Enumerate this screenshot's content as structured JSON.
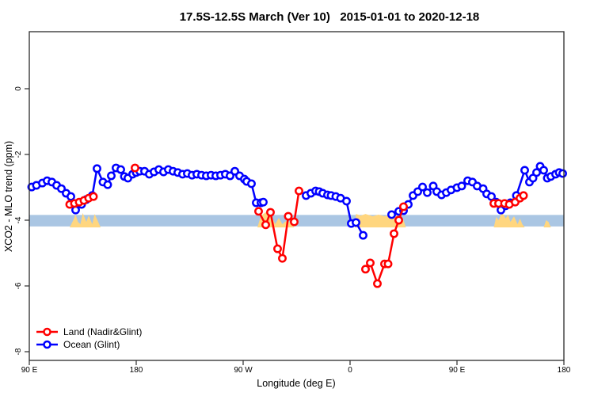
{
  "chart_data": {
    "type": "line",
    "title": "17.5S-12.5S March (Ver 10)   2015-01-01 to 2020-12-18",
    "xlabel": "Longitude (deg E)",
    "ylabel": "XCO2 - MLO trend (ppm)",
    "x_axis": {
      "min": 90,
      "max": 540,
      "note_unit": "longitude unrolled eastward from 90E across the dateline",
      "ticks": [
        {
          "t": 90,
          "label": "90 E"
        },
        {
          "t": 180,
          "label": "180"
        },
        {
          "t": 270,
          "label": "90 W"
        },
        {
          "t": 360,
          "label": "0"
        },
        {
          "t": 450,
          "label": "90 E"
        },
        {
          "t": 540,
          "label": "180"
        }
      ]
    },
    "y_axis": {
      "min": -8.3,
      "max": 1.7,
      "ticks": [
        {
          "v": 0,
          "label": "0"
        },
        {
          "v": -2,
          "label": "-2"
        },
        {
          "v": -4,
          "label": "-4"
        },
        {
          "v": -6,
          "label": "-6"
        },
        {
          "v": -8,
          "label": "-8"
        }
      ]
    },
    "reference_band": {
      "ppm_top": -3.84,
      "ppm_bottom": -4.19,
      "color": "#aac6e3"
    },
    "highlight_patches": {
      "color": "#ffd67f",
      "polygons": [
        [
          [
            124,
            -4.22
          ],
          [
            127,
            -4.0
          ],
          [
            129,
            -3.83
          ],
          [
            131,
            -4.05
          ],
          [
            133,
            -4.12
          ],
          [
            135,
            -3.78
          ],
          [
            138,
            -4.05
          ],
          [
            140,
            -3.86
          ],
          [
            143,
            -4.12
          ],
          [
            145,
            -3.81
          ],
          [
            148,
            -4.05
          ],
          [
            150,
            -4.22
          ]
        ],
        [
          [
            282,
            -4.22
          ],
          [
            285,
            -3.86
          ],
          [
            289,
            -3.76
          ],
          [
            293,
            -3.81
          ],
          [
            297,
            -4.12
          ],
          [
            300,
            -3.93
          ],
          [
            303,
            -4.12
          ],
          [
            307,
            -4.0
          ],
          [
            311,
            -4.12
          ],
          [
            313,
            -4.22
          ]
        ],
        [
          [
            364,
            -4.22
          ],
          [
            365,
            -3.81
          ],
          [
            369,
            -3.86
          ],
          [
            373,
            -3.81
          ],
          [
            379,
            -3.88
          ],
          [
            384,
            -3.83
          ],
          [
            389,
            -3.88
          ],
          [
            395,
            -3.81
          ],
          [
            399,
            -3.86
          ],
          [
            403,
            -3.9
          ],
          [
            405,
            -4.0
          ],
          [
            407,
            -4.22
          ]
        ],
        [
          [
            481,
            -4.22
          ],
          [
            483,
            -3.9
          ],
          [
            485,
            -4.0
          ],
          [
            488,
            -3.76
          ],
          [
            491,
            -3.95
          ],
          [
            493,
            -3.83
          ],
          [
            495,
            -4.05
          ],
          [
            498,
            -3.88
          ],
          [
            501,
            -4.12
          ],
          [
            503,
            -3.95
          ],
          [
            505,
            -4.12
          ],
          [
            507,
            -4.22
          ]
        ],
        [
          [
            523,
            -4.22
          ],
          [
            525,
            -4.0
          ],
          [
            527,
            -4.05
          ],
          [
            529,
            -4.22
          ]
        ]
      ]
    },
    "series": [
      {
        "name": "Land (Nadir&Glint)",
        "color": "#ff0000",
        "segments": [
          [
            [
              124,
              -3.52
            ],
            [
              128,
              -3.49
            ],
            [
              132,
              -3.45
            ],
            [
              136,
              -3.4
            ],
            [
              140,
              -3.33
            ],
            [
              144,
              -3.28
            ]
          ],
          [
            [
              179,
              -2.41
            ]
          ],
          [
            [
              283,
              -3.73
            ],
            [
              289,
              -4.14
            ],
            [
              293,
              -3.76
            ],
            [
              299,
              -4.87
            ],
            [
              303,
              -5.16
            ],
            [
              308,
              -3.88
            ],
            [
              313,
              -4.05
            ],
            [
              317,
              -3.11
            ]
          ],
          [
            [
              373,
              -5.49
            ],
            [
              377,
              -5.3
            ],
            [
              383,
              -5.93
            ],
            [
              389,
              -5.33
            ],
            [
              392,
              -5.33
            ],
            [
              397,
              -4.41
            ],
            [
              401,
              -4.0
            ],
            [
              405,
              -3.59
            ]
          ],
          [
            [
              481,
              -3.49
            ],
            [
              485,
              -3.49
            ],
            [
              490,
              -3.49
            ],
            [
              494,
              -3.52
            ],
            [
              499,
              -3.45
            ],
            [
              503,
              -3.33
            ],
            [
              506,
              -3.25
            ]
          ]
        ]
      },
      {
        "name": "Ocean (Glint)",
        "color": "#0000ff",
        "segments": [
          [
            [
              92,
              -2.99
            ],
            [
              96,
              -2.94
            ],
            [
              101,
              -2.87
            ],
            [
              105,
              -2.8
            ],
            [
              109,
              -2.84
            ],
            [
              113,
              -2.94
            ],
            [
              117,
              -3.04
            ],
            [
              121,
              -3.18
            ],
            [
              125,
              -3.28
            ],
            [
              129,
              -3.69
            ],
            [
              134,
              -3.52
            ],
            [
              138,
              -3.37
            ],
            [
              143,
              -3.25
            ],
            [
              147,
              -2.43
            ],
            [
              152,
              -2.84
            ],
            [
              156,
              -2.92
            ],
            [
              159,
              -2.65
            ],
            [
              163,
              -2.41
            ],
            [
              167,
              -2.46
            ],
            [
              170,
              -2.67
            ],
            [
              173,
              -2.72
            ],
            [
              177,
              -2.6
            ],
            [
              180,
              -2.55
            ],
            [
              183,
              -2.51
            ],
            [
              187,
              -2.51
            ],
            [
              191,
              -2.6
            ],
            [
              195,
              -2.53
            ],
            [
              199,
              -2.46
            ],
            [
              203,
              -2.53
            ],
            [
              207,
              -2.46
            ],
            [
              211,
              -2.51
            ],
            [
              215,
              -2.55
            ],
            [
              219,
              -2.6
            ],
            [
              223,
              -2.58
            ],
            [
              227,
              -2.63
            ],
            [
              231,
              -2.6
            ],
            [
              235,
              -2.63
            ],
            [
              239,
              -2.65
            ],
            [
              243,
              -2.63
            ],
            [
              247,
              -2.65
            ],
            [
              251,
              -2.63
            ],
            [
              255,
              -2.6
            ],
            [
              259,
              -2.65
            ],
            [
              263,
              -2.51
            ],
            [
              267,
              -2.65
            ],
            [
              271,
              -2.75
            ],
            [
              273,
              -2.82
            ],
            [
              277,
              -2.89
            ],
            [
              281,
              -3.47
            ],
            [
              285,
              -3.47
            ],
            [
              287,
              -3.45
            ]
          ],
          [
            [
              323,
              -3.25
            ],
            [
              327,
              -3.18
            ],
            [
              331,
              -3.11
            ],
            [
              334,
              -3.13
            ],
            [
              337,
              -3.18
            ],
            [
              341,
              -3.23
            ],
            [
              344,
              -3.25
            ],
            [
              348,
              -3.28
            ],
            [
              352,
              -3.33
            ],
            [
              357,
              -3.42
            ],
            [
              361,
              -4.1
            ],
            [
              365,
              -4.07
            ],
            [
              371,
              -4.46
            ]
          ],
          [
            [
              395,
              -3.83
            ],
            [
              401,
              -3.73
            ],
            [
              405,
              -3.71
            ],
            [
              409,
              -3.52
            ],
            [
              413,
              -3.25
            ],
            [
              417,
              -3.13
            ],
            [
              421,
              -2.99
            ],
            [
              425,
              -3.16
            ],
            [
              430,
              -2.96
            ],
            [
              433,
              -3.13
            ],
            [
              437,
              -3.23
            ],
            [
              441,
              -3.16
            ],
            [
              445,
              -3.08
            ],
            [
              450,
              -3.01
            ],
            [
              454,
              -2.96
            ],
            [
              459,
              -2.8
            ],
            [
              463,
              -2.84
            ],
            [
              467,
              -2.96
            ],
            [
              472,
              -3.04
            ],
            [
              475,
              -3.2
            ],
            [
              479,
              -3.28
            ],
            [
              483,
              -3.45
            ],
            [
              487,
              -3.69
            ],
            [
              491,
              -3.56
            ],
            [
              495,
              -3.47
            ],
            [
              500,
              -3.25
            ],
            [
              507,
              -2.48
            ],
            [
              511,
              -2.84
            ],
            [
              514,
              -2.72
            ],
            [
              517,
              -2.55
            ],
            [
              520,
              -2.36
            ],
            [
              523,
              -2.48
            ],
            [
              526,
              -2.72
            ],
            [
              529,
              -2.67
            ],
            [
              533,
              -2.6
            ],
            [
              536,
              -2.55
            ],
            [
              539,
              -2.58
            ]
          ]
        ]
      }
    ],
    "legend": {
      "position": "bottom-left"
    }
  }
}
